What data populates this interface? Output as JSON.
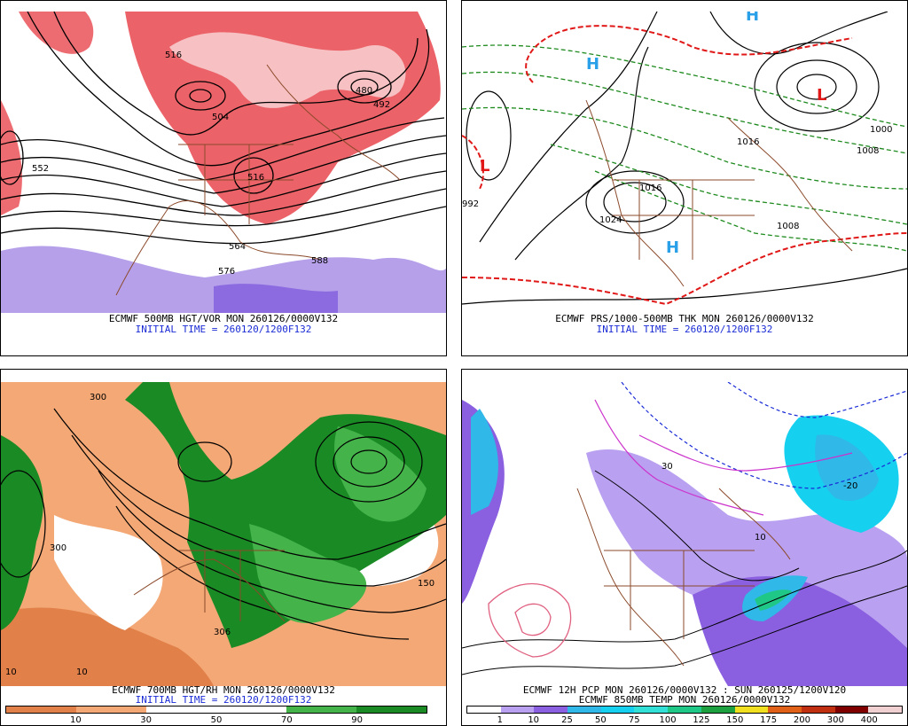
{
  "panels": {
    "p500": {
      "line1": "ECMWF 500MB HGT/VOR MON 260126/0000V132",
      "line2": "INITIAL TIME = 260120/1200F132",
      "labels": [
        "516",
        "504",
        "552",
        "564",
        "576",
        "588",
        "480",
        "492",
        "516"
      ]
    },
    "pmsl": {
      "line1": "ECMWF PRS/1000-500MB THK MON 260126/0000V132",
      "line2": "INITIAL TIME = 260120/1200F132",
      "labels": [
        "1024",
        "1016",
        "1008",
        "1000",
        "992",
        "1016",
        "1008"
      ]
    },
    "p700": {
      "line1": "ECMWF 700MB HGT/RH MON 260126/0000V132",
      "line2": "INITIAL TIME = 260120/1200F132",
      "colorbar": {
        "ticks": [
          "10",
          "30",
          "50",
          "70",
          "90"
        ],
        "colors": [
          "#e2804a",
          "#f3a875",
          "#ffffff",
          "#ffffff",
          "#44b44a",
          "#1a8a25"
        ]
      }
    },
    "pcp": {
      "line1": "ECMWF 12H PCP MON 260126/0000V132 : SUN 260125/1200V120",
      "line2": "ECMWF 850MB TEMP MON 260126/0000V132",
      "colorbar": {
        "ticks": [
          "1",
          "10",
          "25",
          "50",
          "75",
          "100",
          "125",
          "150",
          "175",
          "200",
          "300",
          "400"
        ],
        "colors": [
          "#ffffff",
          "#b9a0f0",
          "#8a5fe0",
          "#2fb8e8",
          "#16d0f0",
          "#33e0d8",
          "#20c888",
          "#1ca040",
          "#f0e020",
          "#e06018",
          "#c03010",
          "#800000",
          "#f0d0d0"
        ]
      }
    }
  }
}
